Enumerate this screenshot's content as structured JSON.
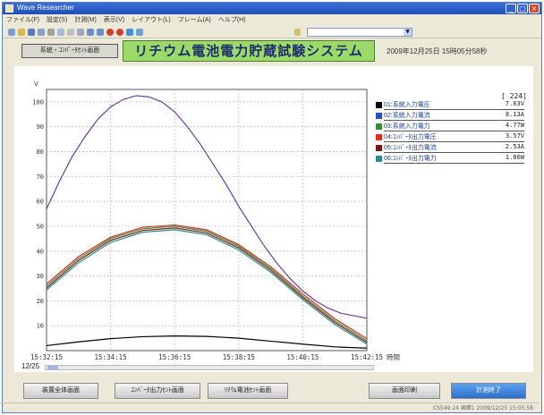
{
  "window": {
    "title": "Wave Researcher"
  },
  "menu": [
    "ファイル(F)",
    "設定(S)",
    "計測(M)",
    "表示(V)",
    "レイアウト(L)",
    "フレーム(A)",
    "ヘルプ(H)"
  ],
  "header": {
    "screen_button": "系統・ｺﾝﾊﾞｰﾀｾﾝﾄ画面",
    "system_title": "リチウム電池電力貯蔵試験システム",
    "datetime": "2009年12月25日 15時05分58秒"
  },
  "counter": "[   224]",
  "legend": [
    {
      "label": "01:系統入力電圧",
      "value": "7.63V",
      "color": "#000000"
    },
    {
      "label": "02:系統入力電流",
      "value": "8.13A",
      "color": "#2a4fc0"
    },
    {
      "label": "03:系統入力電力",
      "value": "4.77W",
      "color": "#3c8a3c"
    },
    {
      "label": "04:ｺﾝﾊﾞｰﾀ出力電圧",
      "value": "3.57V",
      "color": "#e03020"
    },
    {
      "label": "05:ｺﾝﾊﾞｰﾀ出力電流",
      "value": "2.53A",
      "color": "#7a1a1a"
    },
    {
      "label": "06:ｺﾝﾊﾞｰﾀ出力電力",
      "value": "1.86W",
      "color": "#2a8a8a"
    }
  ],
  "date_label": "12/25",
  "buttons": {
    "overall": "装置全体画面",
    "converter": "ｺﾝﾊﾞｰﾀ出力ｾﾝﾄ画面",
    "battery": "ﾘﾁｳﾑ電池ｾﾝﾄ画面",
    "print": "画面印刷",
    "end": "計測終了"
  },
  "statusbar": "CS549  24  画面1  2009/12/25  15:05:58",
  "chart_data": {
    "type": "line",
    "x_unit": "時間",
    "x_ticks": [
      "15:32:15",
      "15:34:15",
      "15:36:15",
      "15:38:15",
      "15:40:15",
      "15:42:15"
    ],
    "y_ticks": [
      10,
      20,
      30,
      40,
      50,
      60,
      70,
      80,
      90,
      100
    ],
    "y_label": "V",
    "ylim": [
      0,
      105
    ],
    "grid": true,
    "series": [
      {
        "color": "#6a3aa8",
        "x": [
          0,
          0.2,
          0.4,
          0.6,
          0.8,
          1.0,
          1.2,
          1.4,
          1.6,
          1.8,
          2.0,
          2.2,
          2.4,
          2.6,
          2.8,
          3.0,
          3.2,
          3.4,
          3.6,
          3.8,
          4.0,
          4.2,
          4.4,
          4.6,
          4.8,
          5.0
        ],
        "y": [
          57,
          68,
          78,
          86,
          93,
          98,
          101,
          102.5,
          102,
          100,
          96,
          90,
          83,
          75,
          67,
          58,
          50,
          42,
          35,
          29,
          24,
          20,
          17,
          15,
          14,
          13
        ]
      },
      {
        "color": "#3c8a3c",
        "x": [
          0,
          0.5,
          1.0,
          1.5,
          2.0,
          2.5,
          3.0,
          3.5,
          4.0,
          4.5,
          5.0
        ],
        "y": [
          26,
          37,
          45,
          49,
          50,
          48,
          42,
          33,
          22,
          12,
          4
        ]
      },
      {
        "color": "#e03020",
        "x": [
          0,
          0.5,
          1.0,
          1.5,
          2.0,
          2.5,
          3.0,
          3.5,
          4.0,
          4.5,
          5.0
        ],
        "y": [
          26.8,
          37.8,
          45.6,
          49.6,
          50.5,
          48.6,
          42.6,
          33.7,
          22.8,
          12.8,
          4.8
        ]
      },
      {
        "color": "#7a1a1a",
        "x": [
          0,
          0.5,
          1.0,
          1.5,
          2.0,
          2.5,
          3.0,
          3.5,
          4.0,
          4.5,
          5.0
        ],
        "y": [
          25.2,
          36.2,
          44.3,
          48.3,
          49.3,
          47.3,
          41.3,
          32.3,
          21.3,
          11.3,
          3.3
        ]
      },
      {
        "color": "#2a8a8a",
        "x": [
          0,
          0.5,
          1.0,
          1.5,
          2.0,
          2.5,
          3.0,
          3.5,
          4.0,
          4.5,
          5.0
        ],
        "y": [
          24.4,
          35.3,
          43.5,
          47.6,
          48.6,
          46.6,
          40.5,
          31.5,
          20.5,
          10.5,
          2.6
        ]
      },
      {
        "color": "#000000",
        "x": [
          0,
          0.5,
          1.0,
          1.5,
          2.0,
          2.5,
          3.0,
          3.5,
          4.0,
          4.5,
          5.0
        ],
        "y": [
          2,
          3.5,
          4.8,
          5.6,
          5.9,
          5.7,
          5.0,
          3.8,
          2.6,
          1.5,
          1.0
        ]
      }
    ]
  }
}
